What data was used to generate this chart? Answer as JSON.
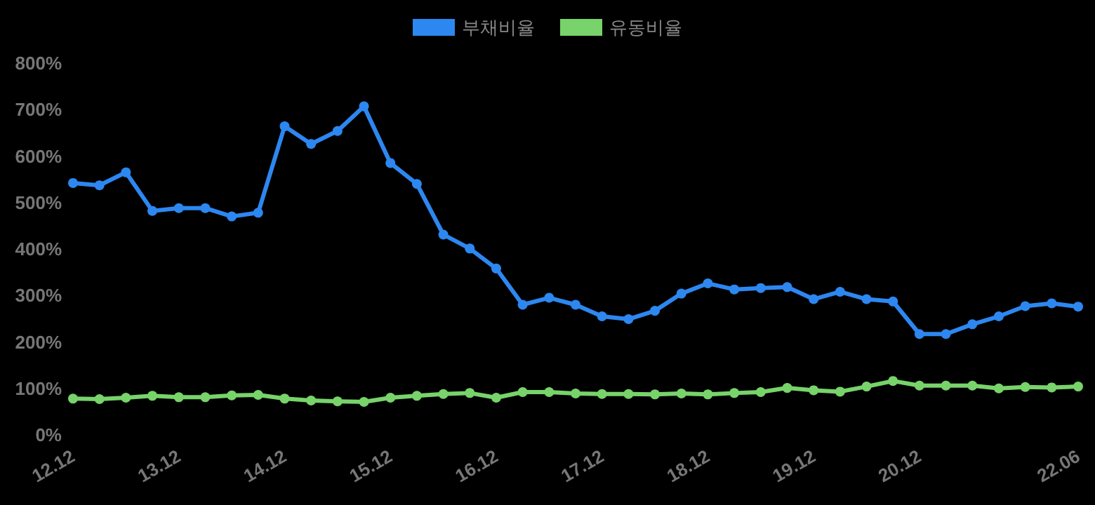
{
  "chart_data": {
    "type": "line",
    "categories": [
      "12.12",
      null,
      null,
      null,
      "13.12",
      null,
      null,
      null,
      "14.12",
      null,
      null,
      null,
      "15.12",
      null,
      null,
      null,
      "16.12",
      null,
      null,
      null,
      "17.12",
      null,
      null,
      null,
      "18.12",
      null,
      null,
      null,
      "19.12",
      null,
      null,
      null,
      "20.12",
      null,
      null,
      null,
      null,
      null,
      "22.06"
    ],
    "series": [
      {
        "name": "부채비율",
        "color": "#2d87f0",
        "values": [
          542,
          537,
          565,
          482,
          488,
          488,
          470,
          478,
          664,
          626,
          654,
          707,
          585,
          540,
          431,
          401,
          358,
          280,
          295,
          280,
          255,
          249,
          267,
          304,
          326,
          313,
          316,
          318,
          292,
          308,
          292,
          287,
          217,
          217,
          238,
          255,
          277,
          283,
          276
        ]
      },
      {
        "name": "유동비율",
        "color": "#77d36a",
        "values": [
          78,
          77,
          80,
          84,
          81,
          81,
          85,
          86,
          78,
          74,
          72,
          71,
          80,
          84,
          88,
          90,
          80,
          92,
          92,
          89,
          88,
          88,
          87,
          89,
          87,
          90,
          92,
          101,
          96,
          93,
          104,
          116,
          106,
          106,
          106,
          100,
          103,
          102,
          104
        ]
      }
    ],
    "ylim": [
      0,
      800
    ],
    "yticks": [
      {
        "value": 0,
        "label": "0%"
      },
      {
        "value": 100,
        "label": "100%"
      },
      {
        "value": 200,
        "label": "200%"
      },
      {
        "value": 300,
        "label": "300%"
      },
      {
        "value": 400,
        "label": "400%"
      },
      {
        "value": 500,
        "label": "500%"
      },
      {
        "value": 600,
        "label": "600%"
      },
      {
        "value": 700,
        "label": "700%"
      },
      {
        "value": 800,
        "label": "800%"
      }
    ],
    "grid": false,
    "legend": "top",
    "marker": "circle",
    "line_style": "solid"
  }
}
